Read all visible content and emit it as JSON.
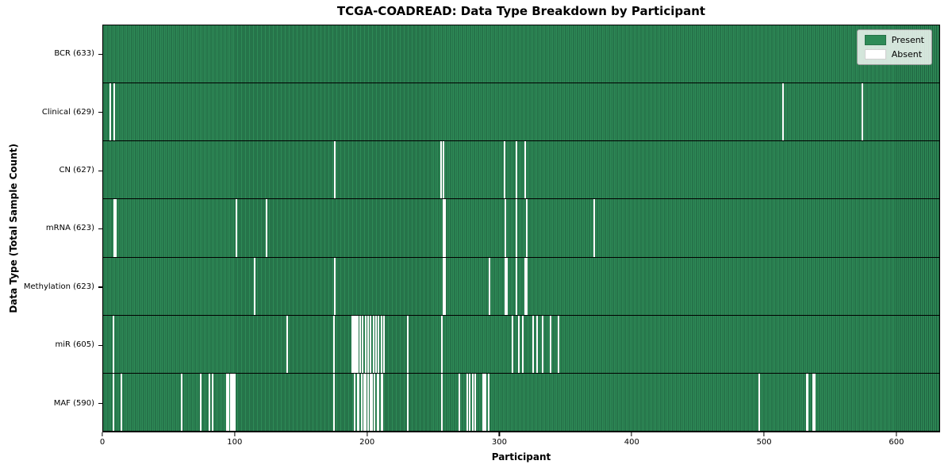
{
  "chart_data": {
    "type": "heatmap",
    "title": "TCGA-COADREAD: Data Type Breakdown by Participant",
    "xlabel": "Participant",
    "ylabel": "Data Type (Total Sample Count)",
    "x_range": [
      0,
      633
    ],
    "x_ticks": [
      0,
      100,
      200,
      300,
      400,
      500,
      600
    ],
    "n_participants": 633,
    "grid": false,
    "legend_position": "upper right",
    "colors": {
      "present": "#2e8b57",
      "present_edge": "#1d5e3e",
      "absent": "#ffffff",
      "background": "#ffffff"
    },
    "legend": [
      {
        "label": "Present",
        "color": "#2e8b57"
      },
      {
        "label": "Absent",
        "color": "#ffffff"
      }
    ],
    "rows": [
      {
        "key": "bcr",
        "label": "BCR (633)",
        "data_type": "BCR",
        "present_count": 633,
        "absent_participants": []
      },
      {
        "key": "clinical",
        "label": "Clinical (629)",
        "data_type": "Clinical",
        "present_count": 629,
        "absent_participants": [
          5,
          8,
          514,
          574
        ]
      },
      {
        "key": "cn",
        "label": "CN (627)",
        "data_type": "CN",
        "present_count": 627,
        "absent_participants": [
          175,
          255,
          257,
          303,
          312,
          319
        ]
      },
      {
        "key": "mrna",
        "label": "mRNA (623)",
        "data_type": "mRNA",
        "present_count": 623,
        "absent_participants": [
          8,
          9,
          100,
          123,
          257,
          258,
          304,
          312,
          320,
          371
        ]
      },
      {
        "key": "methylation",
        "label": "Methylation (623)",
        "data_type": "Methylation",
        "present_count": 623,
        "absent_participants": [
          114,
          175,
          257,
          258,
          292,
          304,
          305,
          312,
          319,
          320
        ]
      },
      {
        "key": "mir",
        "label": "miR (605)",
        "data_type": "miR",
        "present_count": 605,
        "absent_participants": [
          7,
          139,
          174,
          188,
          189,
          190,
          191,
          192,
          194,
          196,
          198,
          200,
          202,
          204,
          206,
          208,
          210,
          212,
          230,
          256,
          309,
          314,
          317,
          325,
          328,
          332,
          338,
          344
        ]
      },
      {
        "key": "maf",
        "label": "MAF (590)",
        "data_type": "MAF",
        "present_count": 590,
        "absent_participants": [
          7,
          13,
          59,
          73,
          80,
          82,
          93,
          94,
          96,
          97,
          98,
          99,
          174,
          190,
          192,
          193,
          195,
          197,
          198,
          200,
          202,
          203,
          205,
          207,
          208,
          210,
          211,
          230,
          256,
          269,
          275,
          277,
          279,
          281,
          287,
          288,
          289,
          291,
          496,
          532,
          533,
          537,
          538
        ]
      }
    ]
  }
}
